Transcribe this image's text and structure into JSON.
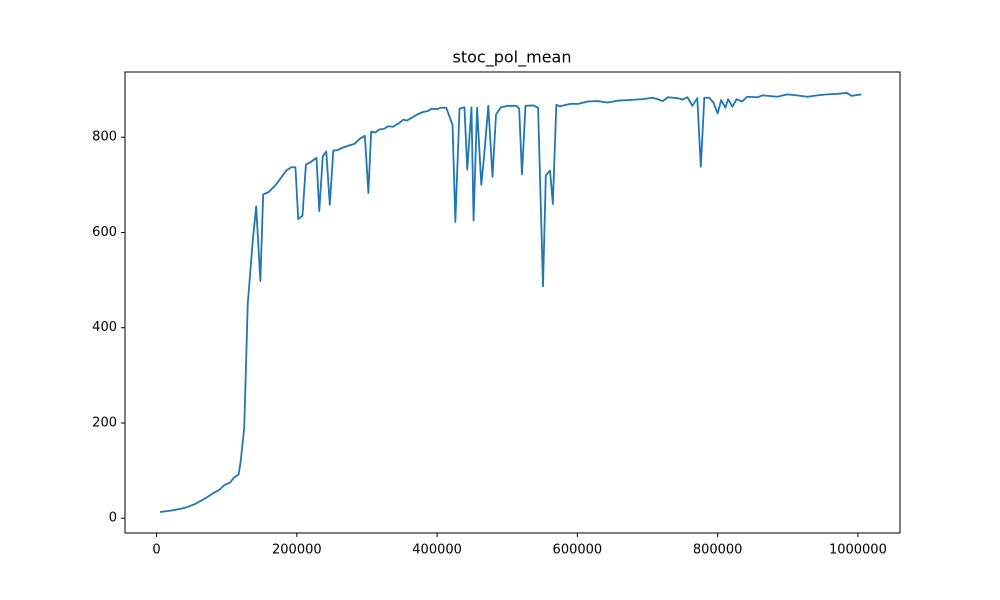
{
  "chart_data": {
    "type": "line",
    "title": "stoc_pol_mean",
    "x": [
      5000,
      20000,
      35000,
      45000,
      55000,
      65000,
      72000,
      80000,
      90000,
      97000,
      105000,
      110000,
      117000,
      120000,
      125000,
      130000,
      137000,
      142000,
      148000,
      152000,
      160000,
      170000,
      180000,
      185000,
      192000,
      198000,
      202000,
      208000,
      213000,
      220000,
      228000,
      232000,
      237000,
      242000,
      247000,
      252000,
      258000,
      265000,
      275000,
      282000,
      290000,
      297000,
      302000,
      306000,
      312000,
      317000,
      325000,
      330000,
      337000,
      345000,
      352000,
      357000,
      365000,
      372000,
      380000,
      387000,
      392000,
      400000,
      405000,
      413000,
      422000,
      426000,
      432000,
      439000,
      443000,
      449000,
      452000,
      457000,
      463000,
      467000,
      473000,
      479000,
      484000,
      491000,
      501000,
      513000,
      517000,
      521000,
      526000,
      537000,
      544000,
      551000,
      555000,
      561000,
      565000,
      570000,
      575000,
      590000,
      601000,
      615000,
      629000,
      643000,
      658000,
      672000,
      693000,
      707000,
      714000,
      722000,
      729000,
      743000,
      750000,
      757000,
      764000,
      771000,
      776000,
      781000,
      788000,
      794000,
      800000,
      805000,
      811000,
      815000,
      821000,
      827000,
      835000,
      842000,
      857000,
      864000,
      885000,
      899000,
      913000,
      928000,
      942000,
      956000,
      970000,
      984000,
      991000,
      1005000
    ],
    "series": [
      {
        "name": "stoc_pol_mean",
        "color": "#1f77b4",
        "values": [
          13,
          16,
          20,
          24,
          30,
          38,
          44,
          52,
          60,
          70,
          75,
          85,
          92,
          120,
          190,
          450,
          580,
          655,
          498,
          680,
          685,
          700,
          720,
          730,
          737,
          737,
          628,
          635,
          743,
          748,
          757,
          645,
          760,
          770,
          658,
          772,
          773,
          778,
          783,
          786,
          797,
          803,
          683,
          812,
          810,
          816,
          818,
          823,
          822,
          829,
          837,
          835,
          842,
          848,
          853,
          855,
          860,
          859,
          862,
          862,
          826,
          622,
          860,
          863,
          732,
          863,
          625,
          862,
          700,
          760,
          866,
          717,
          848,
          863,
          866,
          866,
          860,
          722,
          866,
          867,
          862,
          487,
          720,
          730,
          660,
          868,
          865,
          870,
          870,
          875,
          876,
          873,
          877,
          878,
          880,
          883,
          880,
          876,
          884,
          882,
          879,
          884,
          866,
          882,
          738,
          883,
          883,
          873,
          850,
          878,
          862,
          880,
          864,
          880,
          875,
          885,
          884,
          888,
          885,
          890,
          888,
          885,
          888,
          890,
          891,
          893,
          887,
          890
        ]
      }
    ],
    "xlim": [
      -45000,
      1060000
    ],
    "ylim": [
      -31,
      937
    ],
    "xticks": [
      0,
      200000,
      400000,
      600000,
      800000,
      1000000
    ],
    "yticks": [
      0,
      200,
      400,
      600,
      800
    ]
  }
}
